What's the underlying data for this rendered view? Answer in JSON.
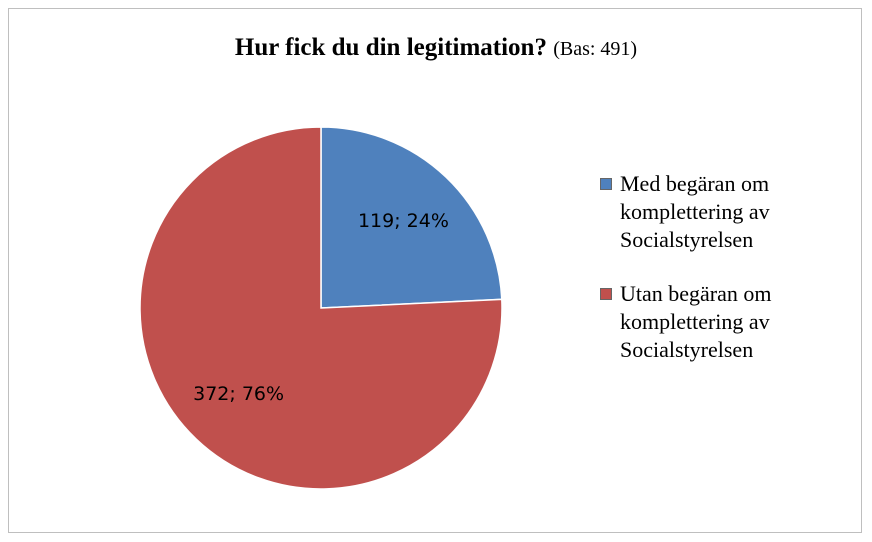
{
  "chart_data": {
    "type": "pie",
    "title": "Hur fick du din legitimation?",
    "subtitle": "(Bas: 491)",
    "categories": [
      "Med begäran om komplettering av Socialstyrelsen",
      "Utan begäran om komplettering av Socialstyrelsen"
    ],
    "values": [
      119,
      372
    ],
    "value_labels": [
      "119; 24%",
      "372; 76%"
    ],
    "colors": [
      "#4f81bd",
      "#c0504d"
    ],
    "legend": "right"
  }
}
